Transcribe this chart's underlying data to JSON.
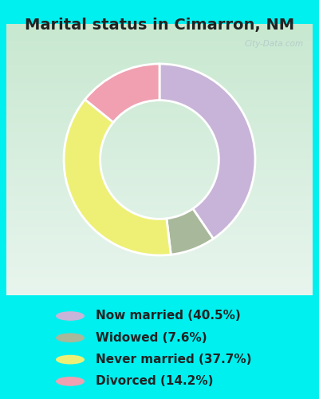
{
  "title": "Marital status in Cimarron, NM",
  "slices": [
    40.5,
    7.6,
    37.7,
    14.2
  ],
  "colors": [
    "#c8b4d8",
    "#a8b89a",
    "#eef076",
    "#f0a0b0"
  ],
  "labels": [
    "Now married (40.5%)",
    "Widowed (7.6%)",
    "Never married (37.7%)",
    "Divorced (14.2%)"
  ],
  "legend_colors": [
    "#c8b4d8",
    "#a8b89a",
    "#eef076",
    "#f0a0b0"
  ],
  "bg_cyan": "#00f0f0",
  "chart_bg_top": "#e8f5ee",
  "chart_bg_bottom": "#c8e8d8",
  "watermark": "City-Data.com",
  "title_fontsize": 14,
  "legend_fontsize": 11,
  "startangle": 90,
  "title_color": "#222222"
}
